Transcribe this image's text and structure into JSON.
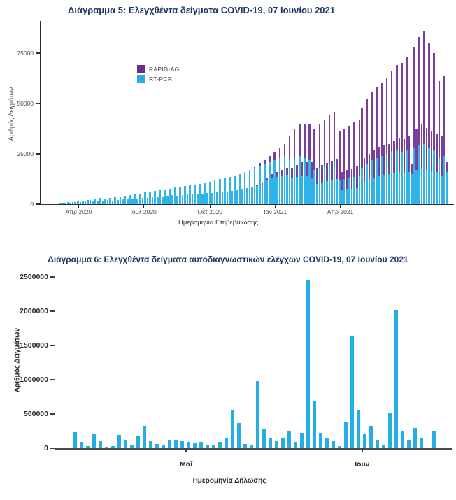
{
  "page": {
    "background": "#ffffff",
    "title_color": "#1f3864",
    "accent_cyan": "#29ace3",
    "accent_purple": "#7c3e9b"
  },
  "chart_data": [
    {
      "type": "bar",
      "stacked": true,
      "title": "Διάγραμμα 5: Ελεγχθέντα δείγματα COVID-19, 07 Ιουνίου 2021",
      "xlabel": "Ημερομηνία Επιβεβαίωσης",
      "ylabel": "Αριθμός Δειγμάτων",
      "ylim": [
        0,
        87000
      ],
      "grid": false,
      "legend_position": "top-left-inside",
      "legend": [
        {
          "label": "RAPID-AG",
          "color": "#6f2b8a"
        },
        {
          "label": "RT-PCR",
          "color": "#29ace3"
        }
      ],
      "yticks": [
        0,
        25000,
        50000,
        75000
      ],
      "ytick_labels": [
        "0",
        "25000",
        "50000",
        "75000"
      ],
      "xtick_labels": [
        "Απρ 2020",
        "Ιουλ 2020",
        "Οκτ 2020",
        "Ιαν 2021",
        "Απρ 2021"
      ],
      "xtick_pos_pct": [
        9.2,
        24.9,
        41.0,
        56.8,
        72.5
      ],
      "x_period": "Φεβ 2020 - Ιουν 2021",
      "series": [
        {
          "name": "RT-PCR",
          "color": "#2fb3e8",
          "values": [
            200,
            400,
            600,
            900,
            700,
            1200,
            900,
            1500,
            1100,
            1800,
            1300,
            2000,
            2200,
            1400,
            2600,
            1700,
            3000,
            1600,
            2800,
            2000,
            3200,
            1900,
            3400,
            2100,
            3800,
            2400,
            4200,
            2600,
            4500,
            2300,
            4800,
            2700,
            5200,
            3000,
            5800,
            3300,
            6200,
            3600,
            6600,
            3400,
            7000,
            3800,
            7400,
            4100,
            7800,
            4400,
            8200,
            4200,
            8600,
            4600,
            9000,
            4800,
            9400,
            5000,
            9800,
            4700,
            10200,
            5200,
            10800,
            5400,
            11200,
            5600,
            11800,
            6000,
            12400,
            6200,
            13000,
            6400,
            13600,
            6600,
            14200,
            6800,
            15000,
            7500,
            16000,
            8000,
            17000,
            8500,
            18000,
            9000,
            19000,
            9500,
            20000,
            12000,
            21000,
            13000,
            22000,
            13500,
            23000,
            14000,
            24000,
            14500,
            22000,
            13000,
            23000,
            13500,
            24000,
            14000,
            23000,
            13800,
            22000,
            13200,
            17000,
            10000,
            18000,
            10800,
            19000,
            11400,
            20000,
            12000,
            21000,
            12600,
            12000,
            7000,
            12500,
            7500,
            13000,
            7800,
            13500,
            8100,
            14000,
            18000,
            11000,
            20000,
            12000,
            22000,
            13000,
            23000,
            14000,
            24000,
            14500,
            25000,
            15000,
            26000,
            15500,
            27000,
            16000,
            26000,
            15800,
            27000,
            16000,
            15000,
            28000,
            17000,
            29000,
            17500,
            30000,
            17000,
            28000,
            16500,
            27000,
            16000,
            23000,
            14000,
            24000,
            16000
          ]
        },
        {
          "name": "RAPID-AG",
          "color": "#7c3e9b",
          "values": [
            0,
            0,
            0,
            0,
            0,
            0,
            0,
            0,
            0,
            0,
            0,
            0,
            0,
            0,
            0,
            0,
            0,
            0,
            0,
            0,
            0,
            0,
            0,
            0,
            0,
            0,
            0,
            0,
            0,
            0,
            0,
            0,
            0,
            0,
            0,
            0,
            0,
            0,
            0,
            0,
            0,
            0,
            0,
            0,
            0,
            0,
            0,
            0,
            0,
            0,
            0,
            0,
            0,
            0,
            0,
            0,
            0,
            0,
            0,
            0,
            0,
            0,
            0,
            0,
            0,
            0,
            0,
            0,
            0,
            0,
            0,
            0,
            0,
            0,
            0,
            0,
            0,
            0,
            500,
            300,
            1500,
            800,
            2000,
            1200,
            3000,
            1800,
            4000,
            2400,
            5000,
            3000,
            6000,
            3600,
            12000,
            5000,
            14000,
            6000,
            16000,
            7000,
            17000,
            7500,
            18000,
            8000,
            20000,
            8000,
            22000,
            8800,
            23000,
            9200,
            24000,
            9600,
            25000,
            10000,
            24000,
            9000,
            25000,
            9500,
            26000,
            10000,
            27000,
            10500,
            28000,
            30000,
            12000,
            32000,
            13000,
            34000,
            14000,
            35000,
            14500,
            36000,
            15000,
            38000,
            15000,
            40000,
            16000,
            42000,
            17000,
            44000,
            16500,
            46000,
            18000,
            5000,
            50000,
            20000,
            54000,
            22000,
            56000,
            21000,
            52000,
            20000,
            48000,
            19000,
            38000,
            20000,
            40000,
            5000
          ]
        }
      ]
    },
    {
      "type": "bar",
      "stacked": false,
      "title": "Διάγραμμα 6: Ελεγχθέντα δείγματα αυτοδιαγνωστικών ελέγχων COVID-19, 07 Ιουνίου 2021",
      "xlabel": "Ημερομηνία Δήλωσης",
      "ylabel": "Αριθμός Δειγμάτων",
      "ylim": [
        0,
        2500000
      ],
      "grid": false,
      "color": "#25aee6",
      "yticks": [
        0,
        500000,
        1000000,
        1500000,
        2000000,
        2500000
      ],
      "ytick_labels": [
        "0",
        "500000",
        "1000000",
        "1500000",
        "2000000",
        "2500000"
      ],
      "xtick_labels": [
        "Μαΐ",
        "Ιουν"
      ],
      "xtick_pos_pct": [
        33.0,
        77.4
      ],
      "values": [
        230000,
        87000,
        35000,
        200000,
        100000,
        20000,
        30000,
        195000,
        125000,
        42000,
        170000,
        330000,
        105000,
        63000,
        42000,
        120000,
        120000,
        105000,
        87000,
        70000,
        87000,
        52000,
        42000,
        87000,
        140000,
        555000,
        365000,
        63000,
        52000,
        975000,
        280000,
        140000,
        105000,
        155000,
        260000,
        87000,
        225000,
        2450000,
        695000,
        225000,
        155000,
        105000,
        35000,
        380000,
        1630000,
        560000,
        210000,
        330000,
        120000,
        52000,
        520000,
        2020000,
        260000,
        120000,
        295000,
        155000,
        15000,
        245000
      ]
    }
  ]
}
